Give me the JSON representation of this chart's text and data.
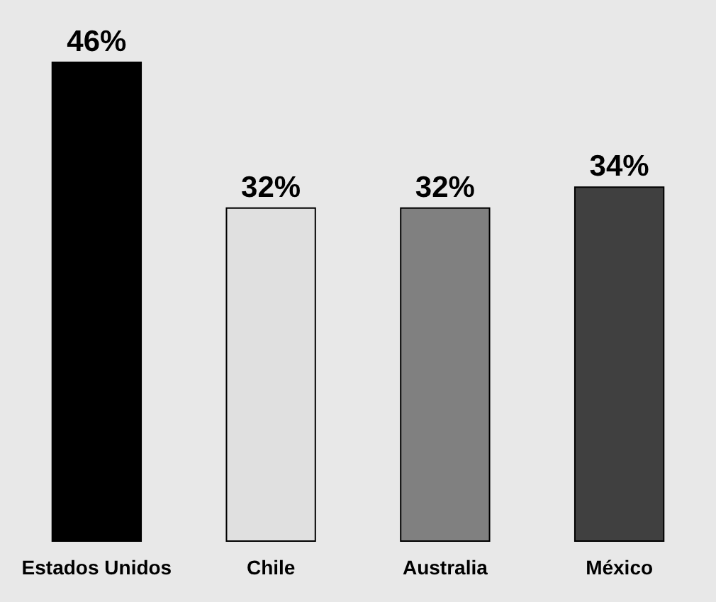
{
  "chart_data": {
    "type": "bar",
    "categories": [
      "Estados Unidos",
      "Chile",
      "Australia",
      "México"
    ],
    "values": [
      46,
      32,
      32,
      34
    ],
    "colors": [
      "#000000",
      "#e0e0e0",
      "#808080",
      "#404040"
    ],
    "value_labels": [
      "46%",
      "32%",
      "32%",
      "34%"
    ]
  }
}
